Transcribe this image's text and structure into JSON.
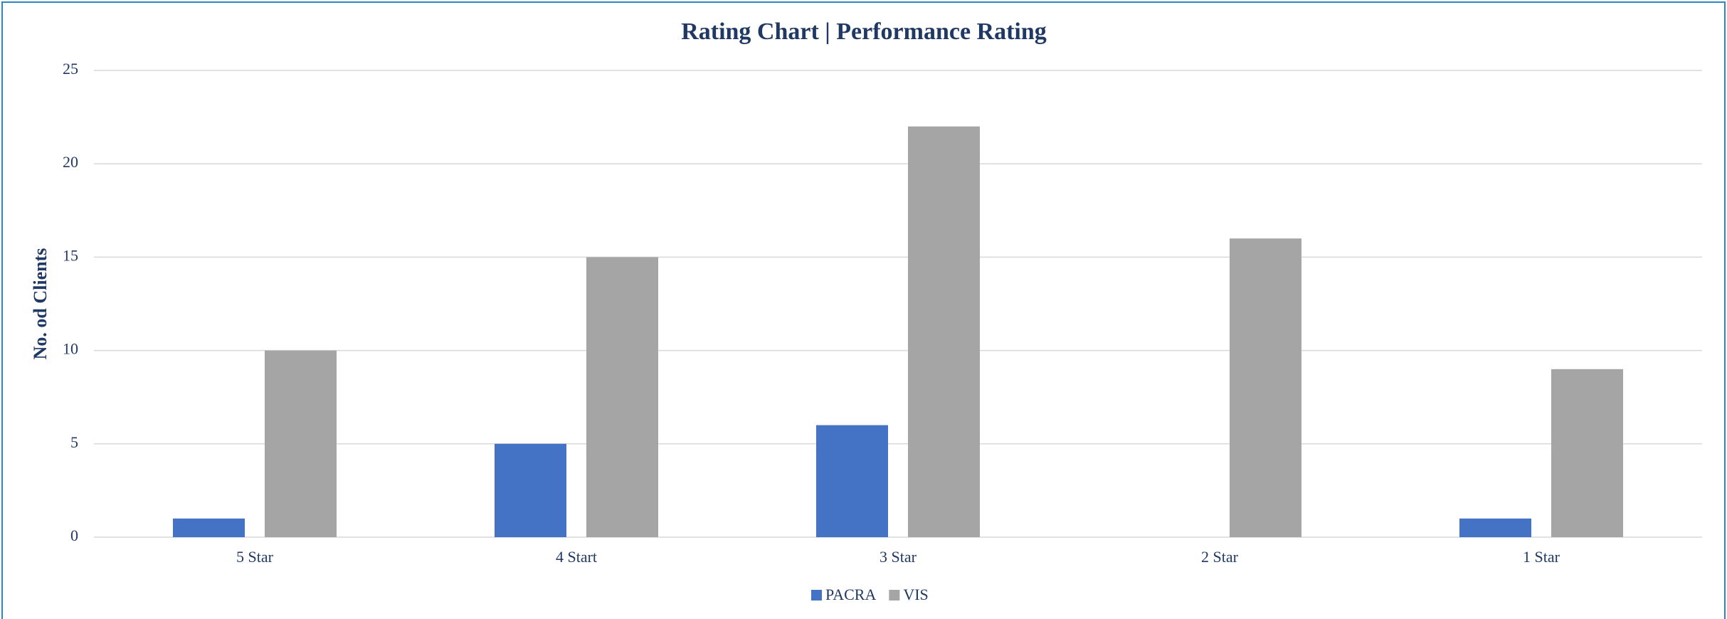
{
  "chart_data": {
    "type": "bar",
    "title": "Rating Chart | Performance Rating",
    "ylabel": "No. od Clients",
    "categories": [
      "5 Star",
      "4 Start",
      "3 Star",
      "2 Star",
      "1 Star"
    ],
    "series": [
      {
        "name": "PACRA",
        "color": "#4472c4",
        "values": [
          1,
          5,
          6,
          0,
          1
        ]
      },
      {
        "name": "VIS",
        "color": "#a5a5a5",
        "values": [
          10,
          15,
          22,
          16,
          9
        ]
      }
    ],
    "ylim": [
      0,
      25
    ],
    "yticks": [
      0,
      5,
      10,
      15,
      20,
      25
    ],
    "grid": true,
    "legend": "bottom"
  }
}
